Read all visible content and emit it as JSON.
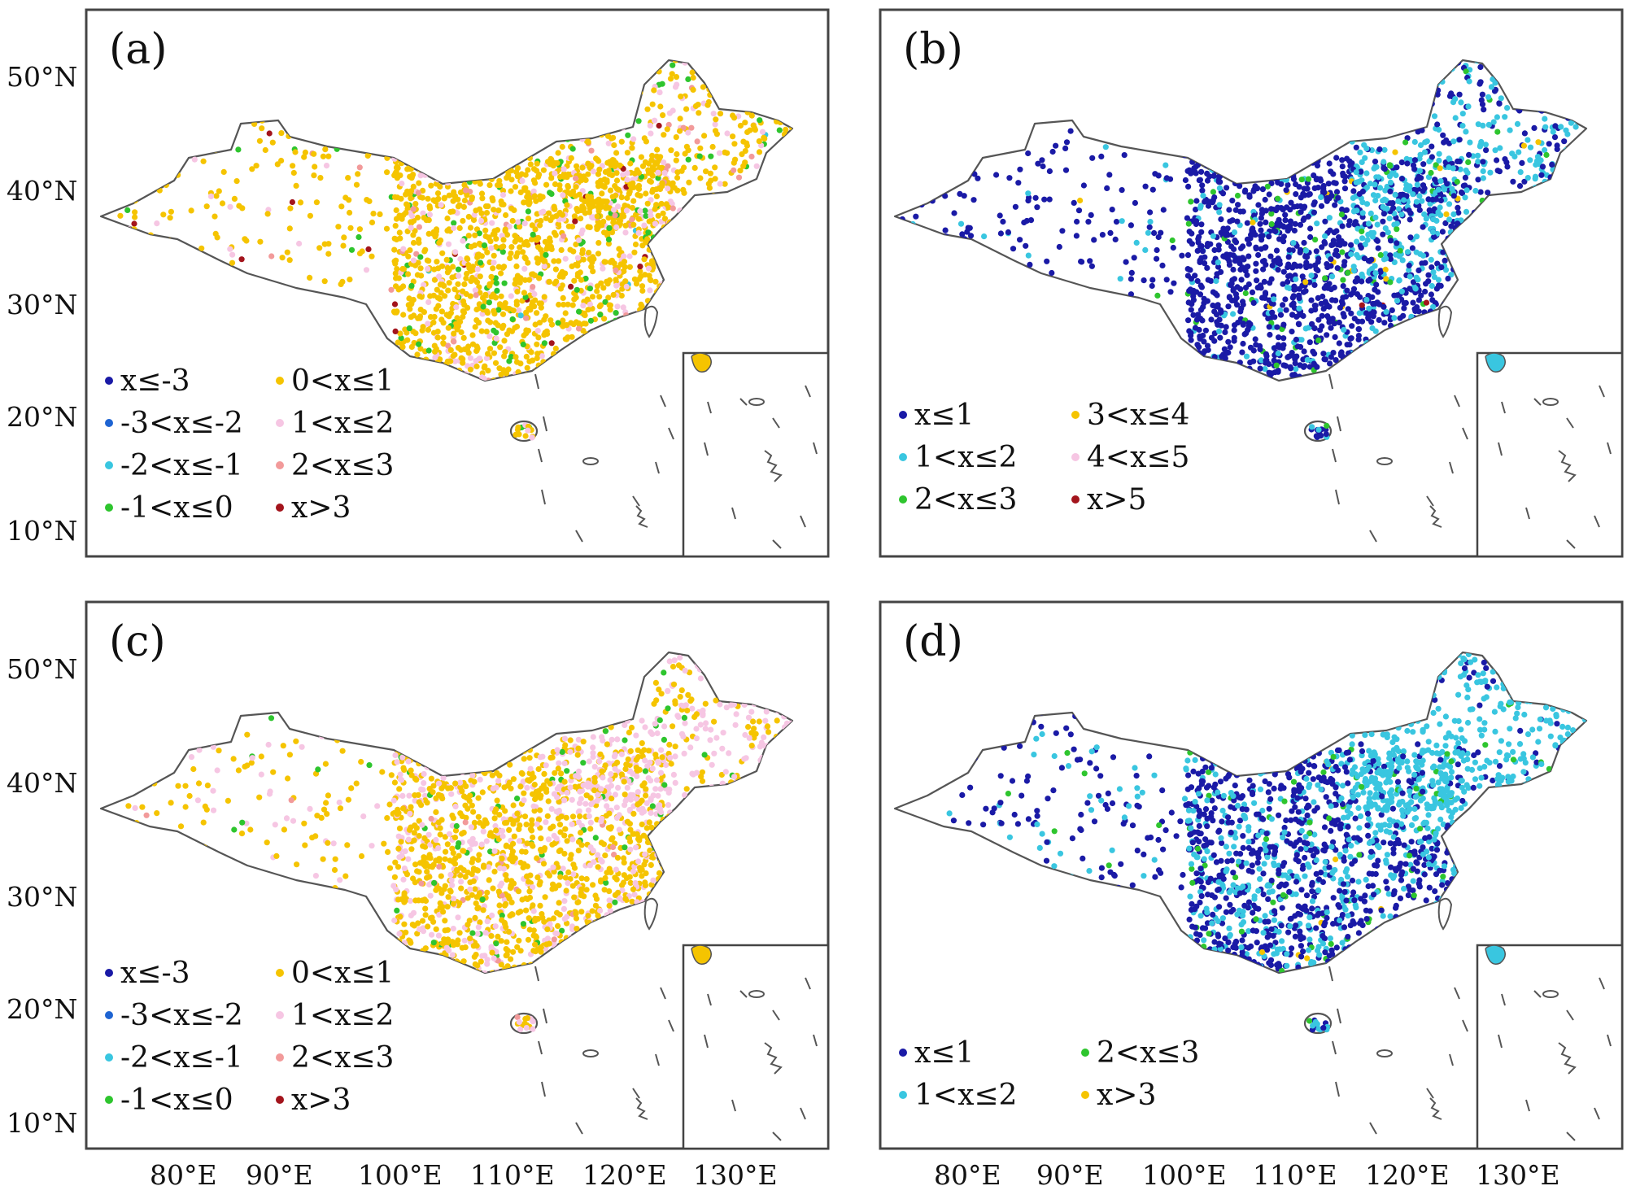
{
  "lat_labels": [
    "50°N",
    "40°N",
    "30°N",
    "20°N",
    "10°N"
  ],
  "lon_labels": [
    "80°E",
    "90°E",
    "100°E",
    "110°E",
    "120°E",
    "130°E"
  ],
  "panels": [
    {
      "label": "(a)",
      "legend": [
        {
          "text": "x≤-3",
          "color": "#1a1aa6"
        },
        {
          "text": "-3<x≤-2",
          "color": "#1e64d2"
        },
        {
          "text": "-2<x≤-1",
          "color": "#39c6e0"
        },
        {
          "text": "-1<x≤0",
          "color": "#2ec52e"
        },
        {
          "text": "0<x≤1",
          "color": "#f5c400"
        },
        {
          "text": "1<x≤2",
          "color": "#f6c6e3"
        },
        {
          "text": "2<x≤3",
          "color": "#f29a9a"
        },
        {
          "text": "x>3",
          "color": "#a3141c"
        }
      ]
    },
    {
      "label": "(b)",
      "legend": [
        {
          "text": "x≤1",
          "color": "#1a1aa6"
        },
        {
          "text": "1<x≤2",
          "color": "#39c6e0"
        },
        {
          "text": "2<x≤3",
          "color": "#2ec52e"
        },
        {
          "text": "3<x≤4",
          "color": "#f5c400"
        },
        {
          "text": "4<x≤5",
          "color": "#f6c6e3"
        },
        {
          "text": "x>5",
          "color": "#a3141c"
        }
      ]
    },
    {
      "label": "(c)",
      "legend": [
        {
          "text": "x≤-3",
          "color": "#1a1aa6"
        },
        {
          "text": "-3<x≤-2",
          "color": "#1e64d2"
        },
        {
          "text": "-2<x≤-1",
          "color": "#39c6e0"
        },
        {
          "text": "-1<x≤0",
          "color": "#2ec52e"
        },
        {
          "text": "0<x≤1",
          "color": "#f5c400"
        },
        {
          "text": "1<x≤2",
          "color": "#f6c6e3"
        },
        {
          "text": "2<x≤3",
          "color": "#f29a9a"
        },
        {
          "text": "x>3",
          "color": "#a3141c"
        }
      ]
    },
    {
      "label": "(d)",
      "legend": [
        {
          "text": "x≤1",
          "color": "#1a1aa6"
        },
        {
          "text": "1<x≤2",
          "color": "#39c6e0"
        },
        {
          "text": "2<x≤3",
          "color": "#2ec52e"
        },
        {
          "text": "x>3",
          "color": "#f5c400"
        }
      ]
    }
  ]
}
